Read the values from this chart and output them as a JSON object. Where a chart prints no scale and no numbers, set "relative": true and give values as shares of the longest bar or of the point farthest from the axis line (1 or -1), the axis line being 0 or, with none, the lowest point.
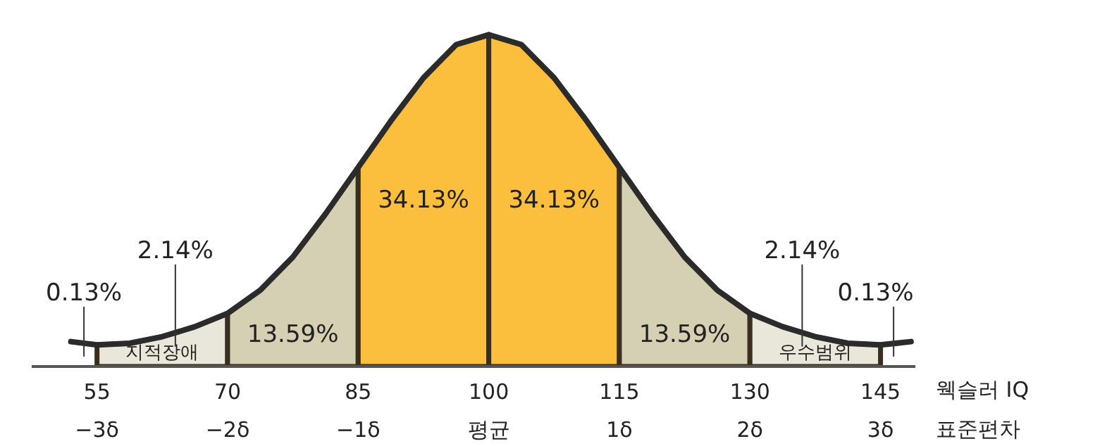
{
  "chart_data": {
    "type": "area",
    "relative": true,
    "xlim": [
      47.5,
      149
    ],
    "xlabel": "웩슬러 IQ",
    "x2label": "표준편차",
    "xticks": [
      55,
      70,
      85,
      100,
      115,
      130,
      145
    ],
    "x2lim": [
      -3.5,
      3.2667
    ],
    "x2ticks": [
      {
        "value": -3,
        "label": "−3δ"
      },
      {
        "value": -2,
        "label": "−2δ"
      },
      {
        "value": -1,
        "label": "−1δ"
      },
      {
        "value": 0,
        "label": "평균"
      },
      {
        "value": 1,
        "label": "1δ"
      },
      {
        "value": 2,
        "label": "2δ"
      },
      {
        "value": 3,
        "label": "3δ"
      }
    ],
    "grid": false,
    "series": [
      {
        "color": "#e9e6da",
        "x": [
          55,
          58.75,
          62.5,
          66.25,
          70
        ],
        "values": [
          0.065,
          0.07,
          0.09,
          0.12,
          0.16
        ]
      },
      {
        "name": "13.59%",
        "color": "#d5cfb3",
        "x": [
          70,
          73.75,
          77.5,
          81.25,
          85
        ],
        "values": [
          0.16,
          0.23,
          0.33,
          0.46,
          0.6
        ]
      },
      {
        "name": "34.13%",
        "color": "#fbbe3d",
        "x": [
          85,
          88.75,
          92.5,
          96.25,
          100
        ],
        "values": [
          0.6,
          0.74,
          0.87,
          0.97,
          1
        ]
      },
      {
        "name": "34.13%",
        "color": "#fbbe3d",
        "x": [
          100,
          103.75,
          107.5,
          111.25,
          115
        ],
        "values": [
          1,
          0.97,
          0.87,
          0.74,
          0.6
        ]
      },
      {
        "name": "13.59%",
        "color": "#d5cfb3",
        "x": [
          115,
          118.75,
          122.5,
          126.25,
          130
        ],
        "values": [
          0.6,
          0.46,
          0.33,
          0.23,
          0.16
        ]
      },
      {
        "color": "#e9e6da",
        "x": [
          130,
          133.75,
          137.5,
          141.25,
          145
        ],
        "values": [
          0.16,
          0.12,
          0.09,
          0.07,
          0.065
        ]
      },
      {
        "type": "line",
        "color": "#2b2b2b",
        "x": [
          52,
          55,
          58.75,
          62.5,
          66.25,
          70,
          73.75,
          77.5,
          81.25,
          85,
          88.75,
          92.5,
          96.25,
          100,
          103.75,
          107.5,
          111.25,
          115,
          118.75,
          122.5,
          126.25,
          130,
          133.75,
          137.5,
          141.25,
          145,
          148.5
        ],
        "values": [
          0.075,
          0.065,
          0.07,
          0.09,
          0.12,
          0.16,
          0.23,
          0.33,
          0.46,
          0.6,
          0.74,
          0.87,
          0.97,
          1,
          0.97,
          0.87,
          0.74,
          0.6,
          0.46,
          0.33,
          0.23,
          0.16,
          0.12,
          0.09,
          0.07,
          0.065,
          0.075
        ]
      }
    ],
    "annotations": [
      {
        "text": "0.13%",
        "x": 53.5,
        "y": 0.07
      },
      {
        "text": "2.14%",
        "x": 64,
        "y": 0.1
      },
      {
        "text": "0.13%",
        "x": 146.5,
        "y": 0.07
      },
      {
        "text": "2.14%",
        "x": 136,
        "y": 0.1
      },
      "지적장애",
      "우수범위"
    ]
  }
}
